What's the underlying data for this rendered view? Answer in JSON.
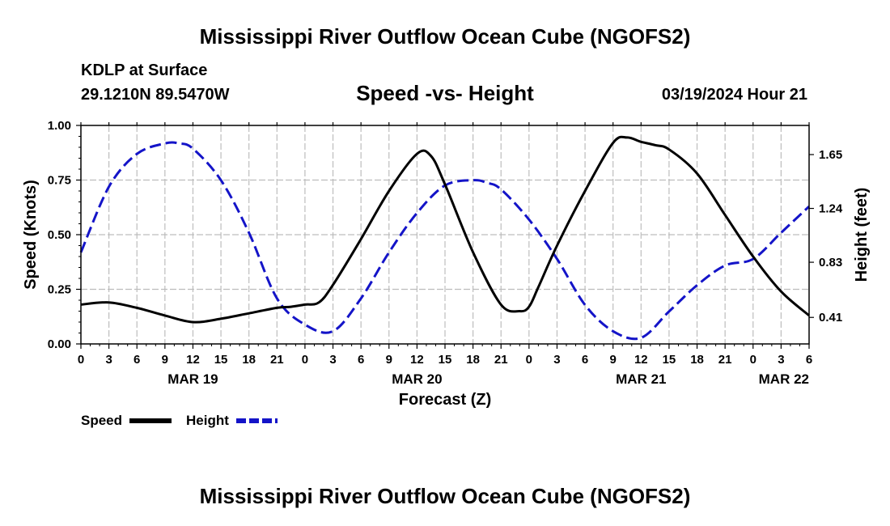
{
  "header": {
    "title": "Mississippi River Outflow Ocean Cube (NGOFS2)",
    "station": "KDLP at Surface",
    "coordinates": "29.1210N  89.5470W",
    "subtitle": "Speed -vs- Height",
    "datetime": "03/19/2024 Hour 21"
  },
  "footer": {
    "title": "Mississippi River Outflow Ocean Cube (NGOFS2)"
  },
  "colors": {
    "speed": "#000000",
    "height": "#1414c8",
    "grid": "#bdbdbd"
  },
  "chart_data": {
    "type": "line",
    "title": "Speed -vs- Height",
    "xlabel": "Forecast (Z)",
    "ylabel": "Speed (Knots)",
    "y2label": "Height (feet)",
    "xlim": [
      0,
      78
    ],
    "ylim": [
      0,
      1
    ],
    "y2lim": [
      0.208,
      1.872
    ],
    "x_ticks": [
      0,
      3,
      6,
      9,
      12,
      15,
      18,
      21,
      24,
      27,
      30,
      33,
      36,
      39,
      42,
      45,
      48,
      51,
      54,
      57,
      60,
      63,
      66,
      69,
      72,
      75,
      78
    ],
    "x_tick_labels": [
      "0",
      "3",
      "6",
      "9",
      "12",
      "15",
      "18",
      "21",
      "0",
      "3",
      "6",
      "9",
      "12",
      "15",
      "18",
      "21",
      "0",
      "3",
      "6",
      "9",
      "12",
      "15",
      "18",
      "21",
      "0",
      "3",
      "6"
    ],
    "date_labels": [
      {
        "x": 12,
        "label": "MAR 19"
      },
      {
        "x": 36,
        "label": "MAR 20"
      },
      {
        "x": 60,
        "label": "MAR 21"
      },
      {
        "x": 84,
        "label": "MAR 22"
      }
    ],
    "y_ticks": [
      0.0,
      0.25,
      0.5,
      0.75,
      1.0
    ],
    "y_tick_labels": [
      "0.00",
      "0.25",
      "0.50",
      "0.75",
      "1.00"
    ],
    "y2_ticks": [
      0.41,
      0.83,
      1.24,
      1.65
    ],
    "y2_tick_labels": [
      "0.41",
      "0.83",
      "1.24",
      "1.65"
    ],
    "grid": true,
    "legend_position": "bottom-left",
    "series": [
      {
        "name": "Speed",
        "axis": "left",
        "style": "solid",
        "x": [
          0,
          3,
          6,
          9,
          12,
          15,
          18,
          21,
          22.5,
          24,
          25.5,
          27,
          30,
          33,
          36,
          37.5,
          39,
          42,
          45,
          47,
          48,
          49,
          51,
          54,
          57,
          58.5,
          60,
          61.5,
          63,
          66,
          69,
          72,
          75,
          78
        ],
        "values": [
          0.18,
          0.19,
          0.165,
          0.13,
          0.1,
          0.115,
          0.14,
          0.165,
          0.17,
          0.18,
          0.19,
          0.27,
          0.48,
          0.7,
          0.87,
          0.86,
          0.73,
          0.42,
          0.18,
          0.15,
          0.17,
          0.26,
          0.45,
          0.7,
          0.92,
          0.945,
          0.925,
          0.91,
          0.89,
          0.78,
          0.59,
          0.4,
          0.24,
          0.13
        ]
      },
      {
        "name": "Height",
        "axis": "right",
        "style": "dashed",
        "x": [
          0,
          3,
          6,
          9,
          10.5,
          12,
          15,
          18,
          21,
          24,
          27,
          30,
          33,
          36,
          39,
          42,
          43.5,
          45,
          48,
          51,
          54,
          57,
          60,
          63,
          66,
          69,
          72,
          75,
          78
        ],
        "values": [
          0.905,
          1.405,
          1.655,
          1.735,
          1.735,
          1.695,
          1.455,
          1.055,
          0.555,
          0.355,
          0.305,
          0.555,
          0.905,
          1.205,
          1.415,
          1.455,
          1.435,
          1.385,
          1.155,
          0.855,
          0.505,
          0.305,
          0.255,
          0.455,
          0.655,
          0.805,
          0.855,
          1.055,
          1.255
        ]
      }
    ]
  }
}
